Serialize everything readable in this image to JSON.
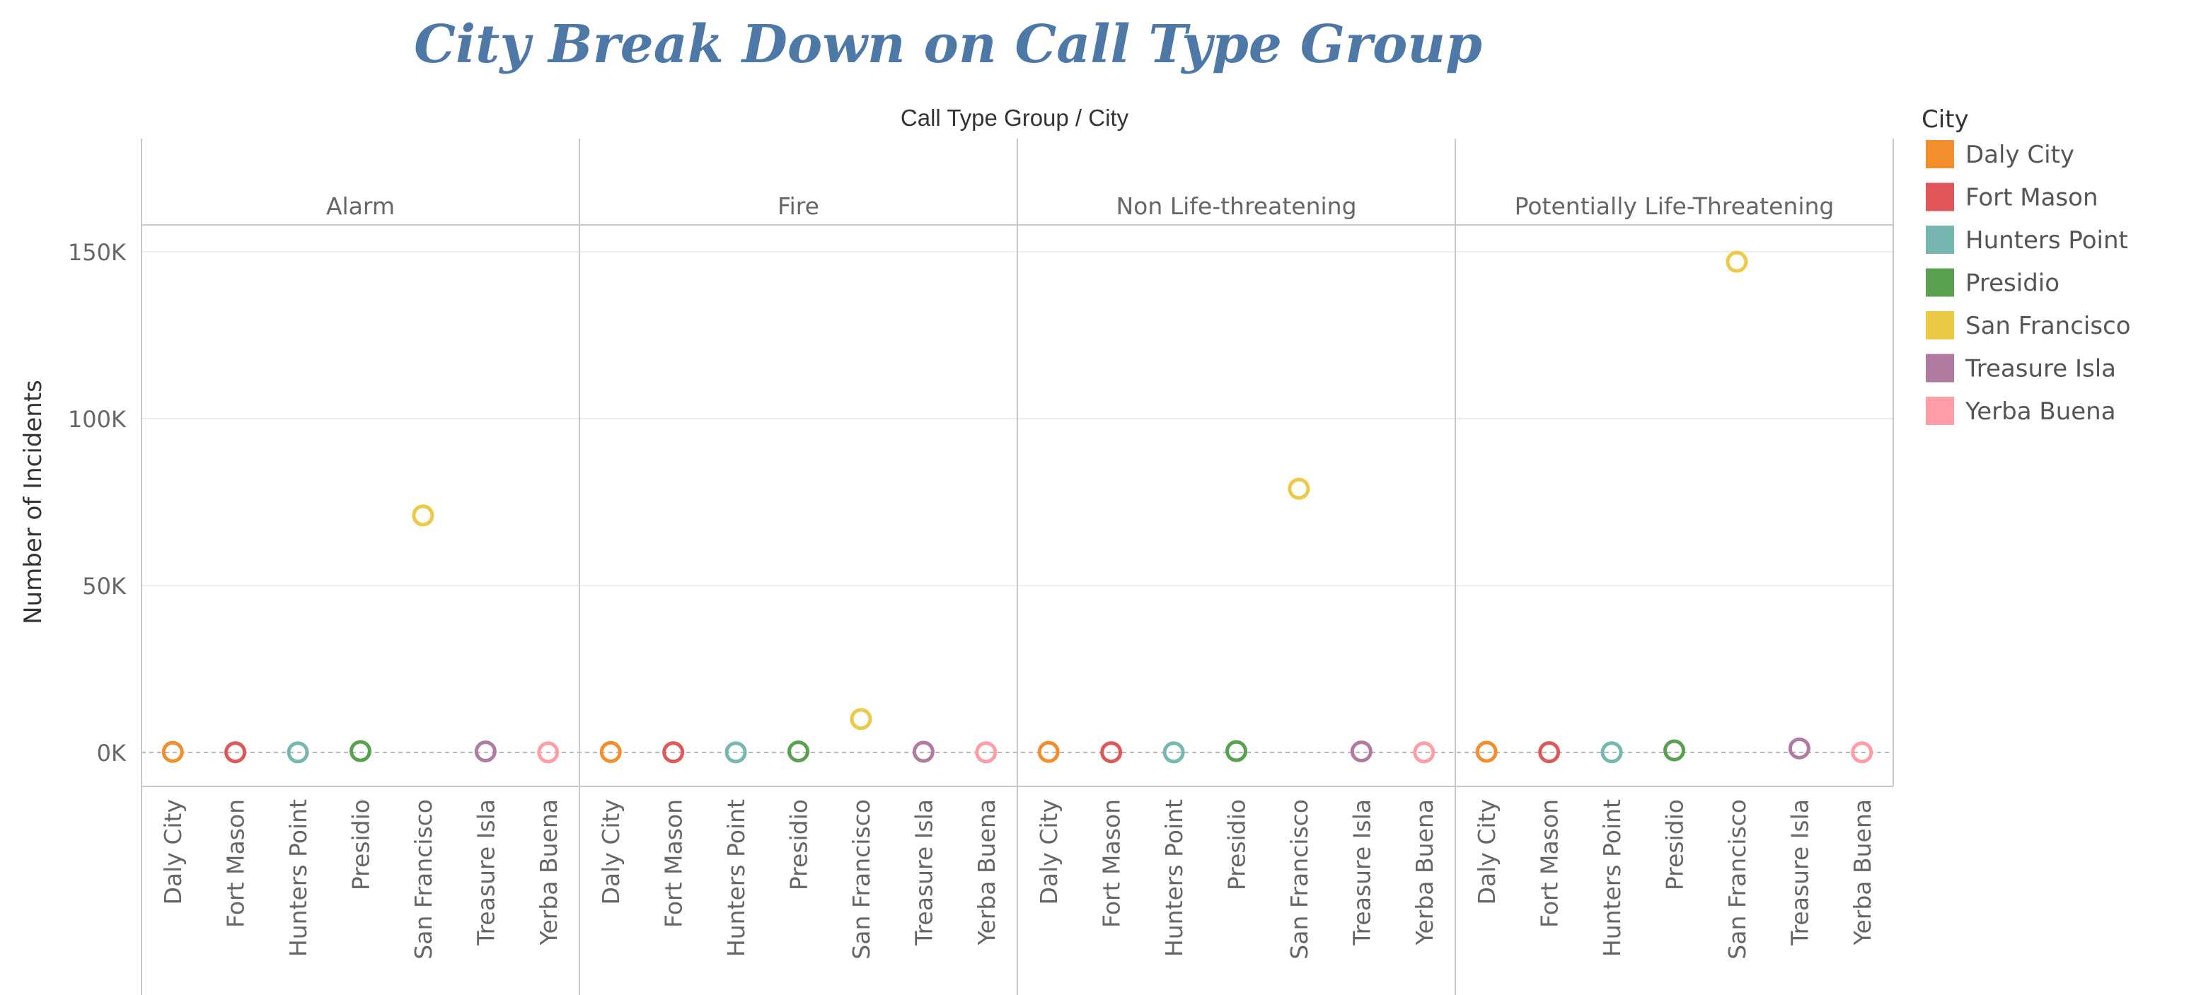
{
  "chart_data": {
    "type": "scatter",
    "title": "City Break Down on Call Type Group",
    "column_header": "Call Type Group  /  City",
    "ylabel": "Number of Incidents",
    "ylim": [
      -10000,
      180000
    ],
    "yticks": [
      {
        "value": 0,
        "label": "0K"
      },
      {
        "value": 50000,
        "label": "50K"
      },
      {
        "value": 100000,
        "label": "100K"
      },
      {
        "value": 150000,
        "label": "150K"
      }
    ],
    "grid": true,
    "legend_title": "City",
    "legend_position": "right",
    "categories": [
      "Daly City",
      "Fort Mason",
      "Hunters Point",
      "Presidio",
      "San Francisco",
      "Treasure Isla",
      "Yerba Buena"
    ],
    "colors": [
      "#f28e2b",
      "#e15759",
      "#76b7b2",
      "#59a14f",
      "#edc948",
      "#b07aa1",
      "#ff9da7"
    ],
    "panels": [
      {
        "name": "Alarm",
        "values": [
          150,
          60,
          30,
          400,
          71000,
          300,
          20
        ]
      },
      {
        "name": "Fire",
        "values": [
          120,
          50,
          30,
          300,
          10000,
          200,
          20
        ]
      },
      {
        "name": "Non Life-threatening",
        "values": [
          150,
          60,
          30,
          400,
          79000,
          300,
          20
        ]
      },
      {
        "name": "Potentially Life-Threatening",
        "values": [
          200,
          70,
          40,
          600,
          147000,
          1200,
          30
        ]
      }
    ]
  }
}
